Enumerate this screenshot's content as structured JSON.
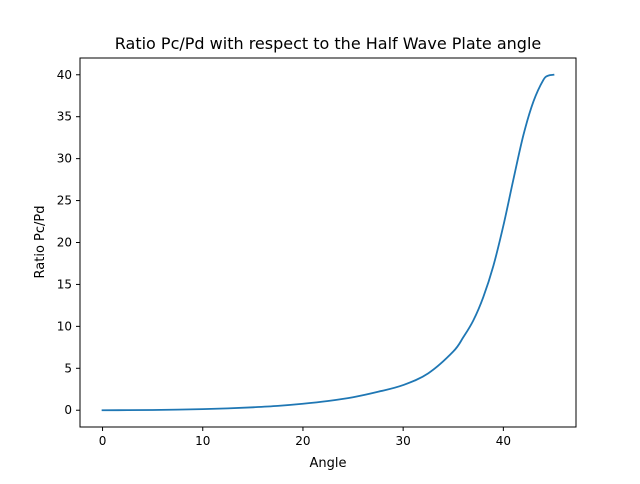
{
  "chart_data": {
    "type": "line",
    "title": "Ratio Pc/Pd with respect to the Half Wave Plate angle",
    "xlabel": "Angle",
    "ylabel": "Ratio Pc/Pd",
    "xlim": [
      -2.25,
      47.25
    ],
    "ylim": [
      -2.0,
      42.0
    ],
    "grid": false,
    "x_ticks": [
      0,
      10,
      20,
      30,
      40
    ],
    "y_ticks": [
      0,
      5,
      10,
      15,
      20,
      25,
      30,
      35,
      40
    ],
    "series": [
      {
        "color": "#1f77b4",
        "x": [
          0,
          2.5,
          5,
          7.5,
          10,
          12.5,
          15,
          17.5,
          20,
          22.5,
          25,
          27.5,
          30,
          32.5,
          35,
          36,
          37,
          38,
          39,
          40,
          41,
          42,
          43,
          44,
          44.5,
          45
        ],
        "y": [
          0.0,
          0.01,
          0.03,
          0.07,
          0.13,
          0.22,
          0.35,
          0.52,
          0.77,
          1.1,
          1.55,
          2.2,
          3.0,
          4.4,
          7.0,
          8.7,
          10.7,
          13.5,
          17.2,
          22.0,
          27.5,
          32.8,
          36.8,
          39.4,
          39.9,
          40.0
        ]
      }
    ]
  }
}
